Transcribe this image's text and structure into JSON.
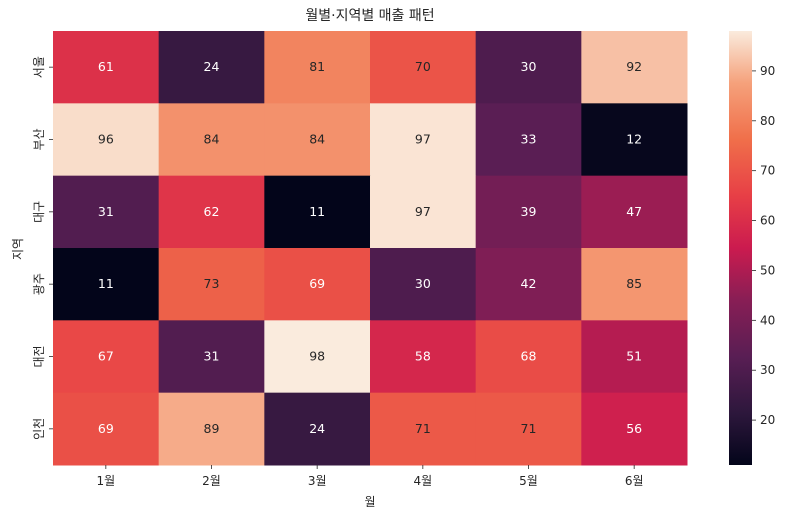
{
  "chart_data": {
    "type": "heatmap",
    "title": "월별·지역별 매출 패턴",
    "xlabel": "월",
    "ylabel": "지역",
    "x_categories": [
      "1월",
      "2월",
      "3월",
      "4월",
      "5월",
      "6월"
    ],
    "y_categories": [
      "서울",
      "부산",
      "대구",
      "광주",
      "대전",
      "인천"
    ],
    "values": [
      [
        61,
        24,
        81,
        70,
        30,
        92
      ],
      [
        96,
        84,
        84,
        97,
        33,
        12
      ],
      [
        31,
        62,
        11,
        97,
        39,
        47
      ],
      [
        11,
        73,
        69,
        30,
        42,
        85
      ],
      [
        67,
        31,
        98,
        58,
        68,
        51
      ],
      [
        69,
        89,
        24,
        71,
        71,
        56
      ]
    ],
    "annotated": true,
    "colormap": "rocket",
    "vmin": 11,
    "vmax": 98,
    "colorbar_ticks": [
      20,
      30,
      40,
      50,
      60,
      70,
      80,
      90
    ]
  }
}
